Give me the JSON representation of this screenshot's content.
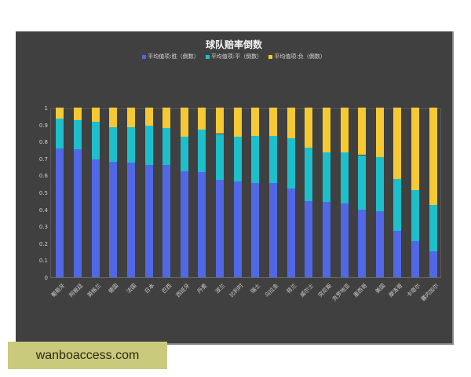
{
  "chart_data": {
    "type": "bar",
    "stacked": true,
    "title": "球队赔率倒数",
    "xlabel": "",
    "ylabel": "",
    "ylim": [
      0,
      1
    ],
    "yticks": [
      "0",
      "0.1",
      "0.2",
      "0.3",
      "0.4",
      "0.5",
      "0.6",
      "0.7",
      "0.8",
      "0.9",
      "1"
    ],
    "legend_position": "top",
    "categories": [
      "葡萄牙",
      "阿根廷",
      "英格兰",
      "德国",
      "法国",
      "日本",
      "巴西",
      "西班牙",
      "丹麦",
      "波兰",
      "比利时",
      "瑞士",
      "乌拉圭",
      "荷兰",
      "威尔士",
      "突尼斯",
      "克罗地亚",
      "墨西哥",
      "美国",
      "摩洛哥",
      "卡塔尔",
      "塞内加尔"
    ],
    "series": [
      {
        "name": "平均值项:胜（倒数）",
        "color": "#5068e6",
        "values": [
          0.76,
          0.755,
          0.695,
          0.68,
          0.675,
          0.66,
          0.66,
          0.625,
          0.62,
          0.575,
          0.565,
          0.555,
          0.555,
          0.525,
          0.45,
          0.445,
          0.435,
          0.4,
          0.39,
          0.275,
          0.215,
          0.155
        ]
      },
      {
        "name": "平均值项:平（倒数）",
        "color": "#1dbfcb",
        "values": [
          0.175,
          0.17,
          0.22,
          0.205,
          0.21,
          0.235,
          0.22,
          0.205,
          0.25,
          0.27,
          0.265,
          0.28,
          0.28,
          0.295,
          0.315,
          0.29,
          0.3,
          0.32,
          0.32,
          0.305,
          0.3,
          0.27
        ]
      },
      {
        "name": "平均值项:负（倒数）",
        "color": "#f5c934",
        "values": [
          0.065,
          0.075,
          0.085,
          0.115,
          0.115,
          0.105,
          0.12,
          0.17,
          0.13,
          0.155,
          0.17,
          0.165,
          0.165,
          0.18,
          0.235,
          0.265,
          0.265,
          0.28,
          0.29,
          0.42,
          0.485,
          0.575
        ]
      }
    ]
  },
  "watermark": "wanboaccess.com"
}
